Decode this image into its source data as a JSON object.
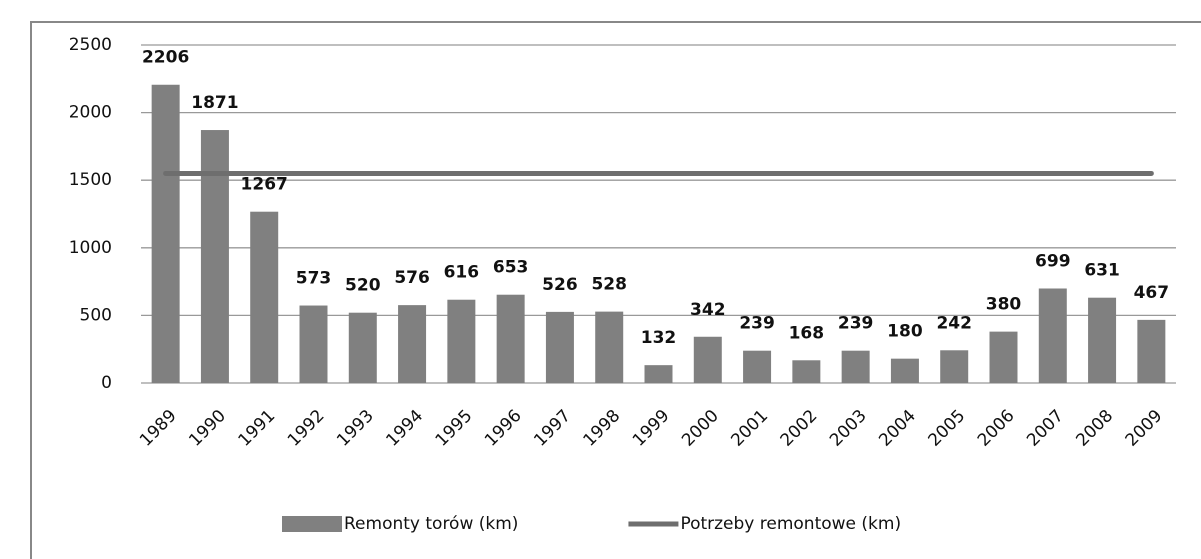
{
  "chart_data": {
    "type": "bar",
    "categories": [
      "1989",
      "1990",
      "1991",
      "1992",
      "1993",
      "1994",
      "1995",
      "1996",
      "1997",
      "1998",
      "1999",
      "2000",
      "2001",
      "2002",
      "2003",
      "2004",
      "2005",
      "2006",
      "2007",
      "2008",
      "2009"
    ],
    "series": [
      {
        "name": "Remonty torów (km)",
        "type": "bar",
        "color": "#808080",
        "values": [
          2206,
          1871,
          1267,
          573,
          520,
          576,
          616,
          653,
          526,
          528,
          132,
          342,
          239,
          168,
          239,
          180,
          242,
          380,
          699,
          631,
          467
        ]
      },
      {
        "name": "Potrzeby remontowe (km)",
        "type": "line",
        "color": "#6e6e6e",
        "values": [
          1550,
          1550,
          1550,
          1550,
          1550,
          1550,
          1550,
          1550,
          1550,
          1550,
          1550,
          1550,
          1550,
          1550,
          1550,
          1550,
          1550,
          1550,
          1550,
          1550,
          1550
        ]
      }
    ],
    "ylim": [
      0,
      2500
    ],
    "yticks": [
      0,
      500,
      1000,
      1500,
      2000,
      2500
    ],
    "grid": true,
    "legend": "bottom"
  }
}
